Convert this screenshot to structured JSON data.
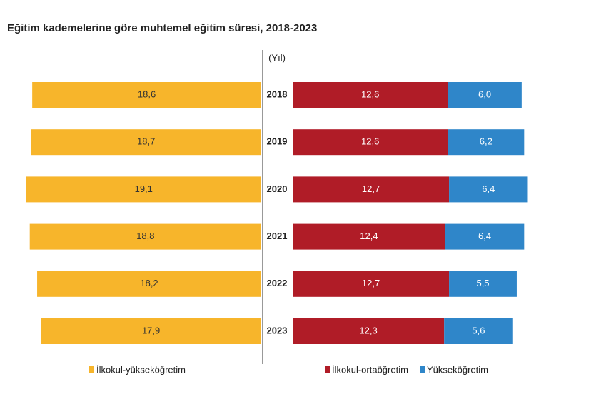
{
  "chart_data": {
    "type": "butterfly-bar",
    "title": "Eğitim kademelerine göre muhtemel eğitim süresi, 2018-2023",
    "unit_label": "(Yıl)",
    "categories": [
      "2018",
      "2019",
      "2020",
      "2021",
      "2022",
      "2023"
    ],
    "series": [
      {
        "name": "İlkokul-yükseköğretim",
        "color": "#f7b52b",
        "values": [
          18.6,
          18.7,
          19.1,
          18.8,
          18.2,
          17.9
        ],
        "value_labels": [
          "18,6",
          "18,7",
          "19,1",
          "18,8",
          "18,2",
          "17,9"
        ]
      },
      {
        "name": "İlkokul-ortaöğretim",
        "color": "#b01c27",
        "values": [
          12.6,
          12.6,
          12.7,
          12.4,
          12.7,
          12.3
        ],
        "value_labels": [
          "12,6",
          "12,6",
          "12,7",
          "12,4",
          "12,7",
          "12,3"
        ]
      },
      {
        "name": "Yükseköğretim",
        "color": "#2f86c9",
        "values": [
          6.0,
          6.2,
          6.4,
          6.4,
          5.5,
          5.6
        ],
        "value_labels": [
          "6,0",
          "6,2",
          "6,4",
          "6,4",
          "5,5",
          "5,6"
        ]
      }
    ]
  }
}
